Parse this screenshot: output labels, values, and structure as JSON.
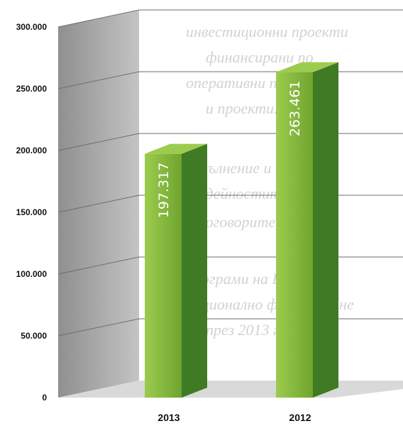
{
  "chart_data": {
    "type": "bar",
    "style": "3d-column",
    "categories": [
      "2013",
      "2012"
    ],
    "series": [
      {
        "values": [
          197317,
          263461
        ],
        "data_labels": [
          "197.317",
          "263.461"
        ]
      }
    ],
    "ylim": [
      0,
      300000
    ],
    "yticks": [
      0,
      50000,
      100000,
      150000,
      200000,
      250000,
      300000
    ],
    "ytick_labels": [
      "0",
      "50.000",
      "100.000",
      "150.000",
      "200.000",
      "250.000",
      "300.000"
    ],
    "grid": true,
    "legend": "none",
    "title": "",
    "xlabel": "",
    "ylabel": "",
    "colors": {
      "bar_front": "#7fb135",
      "bar_side": "#3f7a24",
      "bar_top": "#9ccc4e",
      "left_wall": "#a3a3a3",
      "floor": "#d9d9d9"
    }
  }
}
